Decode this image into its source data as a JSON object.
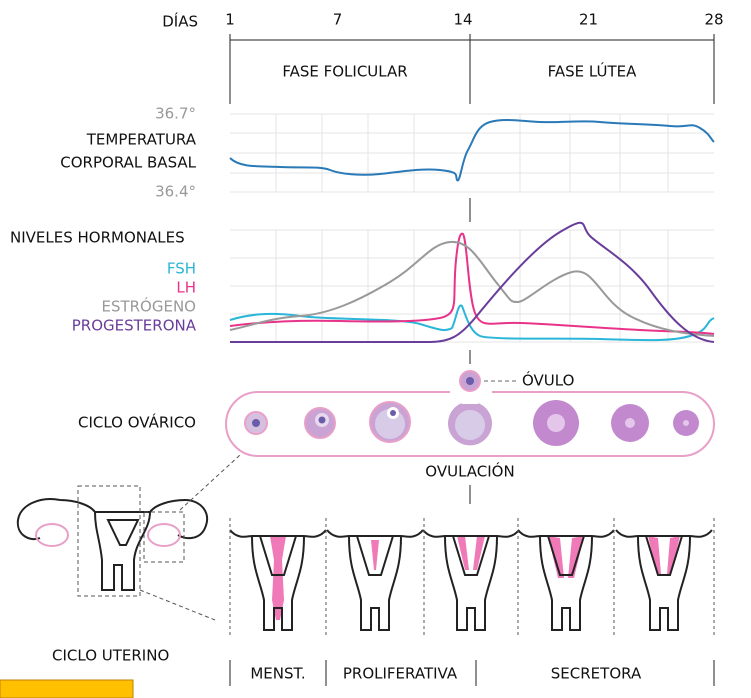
{
  "header": {
    "days_label": "DÍAS",
    "days": [
      1,
      7,
      14,
      21,
      28
    ],
    "phases": [
      "FASE FOLICULAR",
      "FASE LÚTEA"
    ]
  },
  "temperature": {
    "max_label": "36.7°",
    "min_label": "36.4°",
    "title_lines": [
      "TEMPERATURA",
      "CORPORAL BASAL"
    ]
  },
  "hormones": {
    "title": "NIVELES HORMONALES",
    "legend": [
      {
        "name": "FSH",
        "color": "#29b6d8"
      },
      {
        "name": "LH",
        "color": "#e8338a"
      },
      {
        "name": "ESTRÓGENO",
        "color": "#999999"
      },
      {
        "name": "PROGESTERONA",
        "color": "#6a3d9a"
      }
    ]
  },
  "ovarian": {
    "title": "CICLO OVÁRICO",
    "ovum": "ÓVULO",
    "ovulation": "OVULACIÓN"
  },
  "uterine": {
    "title": "CICLO UTERINO",
    "phases": [
      "MENST.",
      "PROLIFERATIVA",
      "SECRETORA"
    ]
  }
}
